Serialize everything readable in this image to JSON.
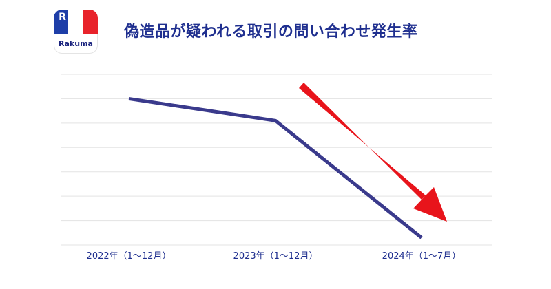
{
  "brand": {
    "name": "Rakuma",
    "mark": "R",
    "flag_colors": [
      "#1e3ea8",
      "#ffffff",
      "#e8232b"
    ]
  },
  "title": "偽造品が疑われる取引の問い合わせ発生率",
  "colors": {
    "line": "#3a3a8c",
    "arrow": "#e8141b",
    "grid": "#e3e3e3",
    "text": "#1f2f8f"
  },
  "chart_data": {
    "type": "line",
    "title": "偽造品が疑われる取引の問い合わせ発生率",
    "categories": [
      "2022年（1〜12月）",
      "2023年（1〜12月）",
      "2024年（1〜7月）"
    ],
    "series": [
      {
        "values": [
          6.0,
          5.1,
          0.3
        ]
      }
    ],
    "ylim": [
      0,
      7
    ],
    "grid": true,
    "y_tick_labels_shown": false,
    "legend": "none",
    "annotation": "red downward arrow"
  }
}
